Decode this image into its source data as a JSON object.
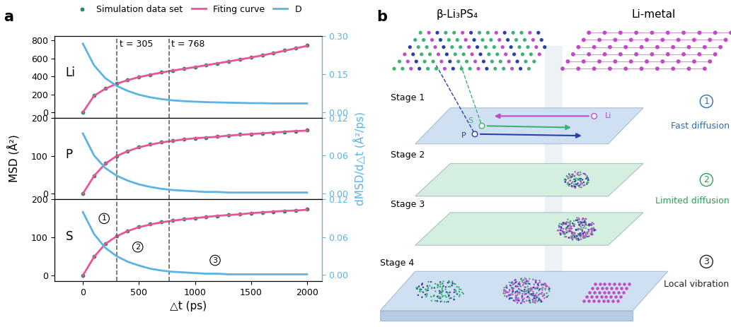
{
  "panel_a": {
    "panel_label": "a",
    "y_label": "MSD (Å²)",
    "y2_label": "dMSD/d△t (Å²/ps)",
    "legend": "upper center",
    "vlines": [
      {
        "x": 305,
        "label": "t = 305"
      },
      {
        "x": 768,
        "label": "t = 768"
      }
    ]
  },
  "chart_data": [
    {
      "type": "line",
      "title": "Li",
      "tick_labels": "y",
      "x": [
        0,
        100,
        200,
        300,
        400,
        500,
        600,
        700,
        800,
        900,
        1000,
        1100,
        1200,
        1300,
        1400,
        1500,
        1600,
        1700,
        1800,
        1900,
        2000
      ],
      "xlim": [
        -250,
        2130
      ],
      "xticks": [
        0,
        500,
        1000,
        1500,
        2000
      ],
      "ylim": [
        -60,
        850
      ],
      "yticks": [
        0,
        200,
        400,
        600,
        800
      ],
      "y2lim": [
        -0.02,
        0.3
      ],
      "y2ticks": [
        {
          "value": 0.0,
          "label": "0.00"
        },
        {
          "value": 0.15,
          "label": "0.15"
        },
        {
          "value": 0.3,
          "label": "0.30"
        }
      ],
      "series": [
        {
          "name": "Simulation data set",
          "type": "scatter",
          "marker": "o",
          "color": "#2e8b57",
          "values": [
            0,
            190,
            265,
            320,
            360,
            395,
            420,
            445,
            465,
            485,
            505,
            525,
            545,
            565,
            590,
            610,
            635,
            660,
            690,
            715,
            745
          ]
        },
        {
          "name": "Fiting curve",
          "type": "line",
          "color": "#e8559a",
          "values": [
            0,
            185,
            262,
            318,
            358,
            392,
            418,
            443,
            464,
            484,
            504,
            524,
            545,
            566,
            588,
            610,
            634,
            659,
            686,
            713,
            740
          ]
        },
        {
          "name": "D",
          "type": "line",
          "color": "#5ab4e5",
          "axis": "y2",
          "values": [
            0.27,
            0.185,
            0.135,
            0.105,
            0.085,
            0.07,
            0.06,
            0.053,
            0.048,
            0.045,
            0.043,
            0.041,
            0.04,
            0.039,
            0.038,
            0.037,
            0.037,
            0.036,
            0.036,
            0.036,
            0.036
          ]
        }
      ]
    },
    {
      "type": "line",
      "title": "P",
      "tick_labels": "y",
      "x": [
        0,
        100,
        200,
        300,
        400,
        500,
        600,
        700,
        800,
        900,
        1000,
        1100,
        1200,
        1300,
        1400,
        1500,
        1600,
        1700,
        1800,
        1900,
        2000
      ],
      "xlim": [
        -250,
        2130
      ],
      "xticks": [
        0,
        500,
        1000,
        1500,
        2000
      ],
      "ylim": [
        -15,
        200
      ],
      "yticks": [
        0,
        100,
        200
      ],
      "y2lim": [
        -0.01,
        0.12
      ],
      "y2ticks": [
        {
          "value": 0.0,
          "label": "0.00"
        },
        {
          "value": 0.06,
          "label": "0.06"
        },
        {
          "value": 0.12,
          "label": "0.12"
        }
      ],
      "series": [
        {
          "name": "Simulation data set",
          "type": "scatter",
          "marker": "o",
          "color": "#2e8b57",
          "values": [
            0,
            48,
            80,
            100,
            113,
            123,
            130,
            136,
            140,
            143,
            146,
            148,
            151,
            153,
            156,
            157,
            159,
            161,
            163,
            165,
            167
          ]
        },
        {
          "name": "Fiting curve",
          "type": "line",
          "color": "#e8559a",
          "values": [
            0,
            47,
            79,
            99,
            112,
            122,
            129,
            135,
            139,
            143,
            146,
            148,
            150,
            153,
            155,
            157,
            159,
            161,
            163,
            165,
            166
          ]
        },
        {
          "name": "D",
          "type": "line",
          "color": "#5ab4e5",
          "axis": "y2",
          "values": [
            0.095,
            0.06,
            0.04,
            0.028,
            0.02,
            0.014,
            0.01,
            0.007,
            0.005,
            0.004,
            0.003,
            0.002,
            0.002,
            0.001,
            0.001,
            0.001,
            0.001,
            0.001,
            0.001,
            0.001,
            0.001
          ]
        }
      ]
    },
    {
      "type": "line",
      "title": "S",
      "x_label": "△t (ps)",
      "x": [
        0,
        100,
        200,
        300,
        400,
        500,
        600,
        700,
        800,
        900,
        1000,
        1100,
        1200,
        1300,
        1400,
        1500,
        1600,
        1700,
        1800,
        1900,
        2000
      ],
      "xlim": [
        -250,
        2130
      ],
      "xticks": [
        0,
        500,
        1000,
        1500,
        2000
      ],
      "ylim": [
        -15,
        200
      ],
      "yticks": [
        0,
        100,
        200
      ],
      "y2lim": [
        -0.01,
        0.12
      ],
      "y2ticks": [
        {
          "value": 0.0,
          "label": "0.00"
        },
        {
          "value": 0.06,
          "label": "0.06"
        },
        {
          "value": 0.12,
          "label": "0.12"
        }
      ],
      "regions": [
        {
          "label": "1",
          "x": 190,
          "y": 150
        },
        {
          "label": "2",
          "x": 490,
          "y": 75
        },
        {
          "label": "3",
          "x": 1180,
          "y": 40
        }
      ],
      "series": [
        {
          "name": "Simulation data set",
          "type": "scatter",
          "marker": "o",
          "color": "#2e8b57",
          "values": [
            0,
            50,
            84,
            104,
            118,
            128,
            135,
            141,
            145,
            148,
            151,
            154,
            157,
            160,
            162,
            164,
            166,
            168,
            170,
            172,
            174
          ]
        },
        {
          "name": "Fiting curve",
          "type": "line",
          "color": "#e8559a",
          "values": [
            0,
            49,
            83,
            103,
            117,
            127,
            134,
            140,
            144,
            148,
            151,
            154,
            157,
            159,
            161,
            164,
            166,
            168,
            170,
            171,
            173
          ]
        },
        {
          "name": "D",
          "type": "line",
          "color": "#5ab4e5",
          "axis": "y2",
          "values": [
            0.1,
            0.065,
            0.043,
            0.03,
            0.021,
            0.015,
            0.01,
            0.007,
            0.005,
            0.004,
            0.003,
            0.002,
            0.002,
            0.001,
            0.001,
            0.001,
            0.001,
            0.001,
            0.001,
            0.001,
            0.001
          ]
        }
      ]
    }
  ],
  "diagram": {
    "panel_label": "b",
    "left_label": "β-Li₃PS₄",
    "right_label": "Li-metal",
    "stages": [
      "Stage 1",
      "Stage 2",
      "Stage 3",
      "Stage 4"
    ],
    "regimes": [
      {
        "number": "1",
        "label": "Fast diffusion",
        "color": "#2f6db5"
      },
      {
        "number": "2",
        "label": "Limited diffusion",
        "color": "#2e9e5b"
      },
      {
        "number": "3",
        "label": "Local vibration",
        "color": "#222222"
      }
    ],
    "species": [
      {
        "label": "S",
        "color": "#3cb371"
      },
      {
        "label": "P",
        "color": "#2b3fa8"
      },
      {
        "label": "Li",
        "color": "#c04bc8"
      }
    ]
  }
}
